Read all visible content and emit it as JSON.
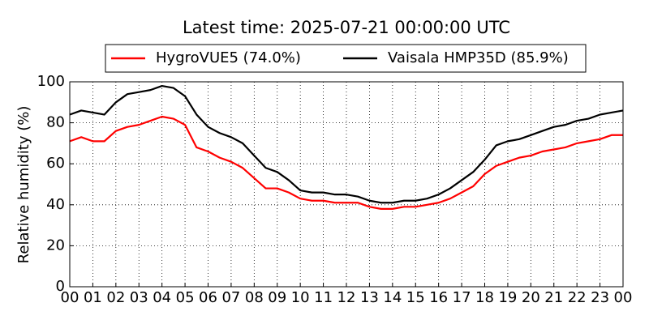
{
  "chart_data": {
    "type": "line",
    "title": "Latest time: 2025-07-21 00:00:00 UTC",
    "y_label": "Relative humidity (%)",
    "x": [
      0,
      0.5,
      1,
      1.5,
      2,
      2.5,
      3,
      3.5,
      4,
      4.5,
      5,
      5.5,
      6,
      6.5,
      7,
      7.5,
      8,
      8.5,
      9,
      9.5,
      10,
      10.5,
      11,
      11.5,
      12,
      12.5,
      13,
      13.5,
      14,
      14.5,
      15,
      15.5,
      16,
      16.5,
      17,
      17.5,
      18,
      18.5,
      19,
      19.5,
      20,
      20.5,
      21,
      21.5,
      22,
      22.5,
      23,
      23.5,
      24
    ],
    "series": [
      {
        "name": "HygroVUE5 (74.0%)",
        "color": "#ff0000",
        "values": [
          71,
          73,
          71,
          71,
          76,
          78,
          79,
          81,
          83,
          82,
          79,
          68,
          66,
          63,
          61,
          58,
          53,
          48,
          48,
          46,
          43,
          42,
          42,
          41,
          41,
          41,
          39,
          38,
          38,
          39,
          39,
          40,
          41,
          43,
          46,
          49,
          55,
          59,
          61,
          63,
          64,
          66,
          67,
          68,
          70,
          71,
          72,
          74,
          74
        ]
      },
      {
        "name": "Vaisala HMP35D (85.9%)",
        "color": "#000000",
        "values": [
          84,
          86,
          85,
          84,
          90,
          94,
          95,
          96,
          98,
          97,
          93,
          84,
          78,
          75,
          73,
          70,
          64,
          58,
          56,
          52,
          47,
          46,
          46,
          45,
          45,
          44,
          42,
          41,
          41,
          42,
          42,
          43,
          45,
          48,
          52,
          56,
          62,
          69,
          71,
          72,
          74,
          76,
          78,
          79,
          81,
          82,
          84,
          85,
          86
        ]
      }
    ],
    "xlim": [
      0,
      24
    ],
    "xticks": [
      {
        "value": 0,
        "label": "00"
      },
      {
        "value": 1,
        "label": "01"
      },
      {
        "value": 2,
        "label": "02"
      },
      {
        "value": 3,
        "label": "03"
      },
      {
        "value": 4,
        "label": "04"
      },
      {
        "value": 5,
        "label": "05"
      },
      {
        "value": 6,
        "label": "06"
      },
      {
        "value": 7,
        "label": "07"
      },
      {
        "value": 8,
        "label": "08"
      },
      {
        "value": 9,
        "label": "09"
      },
      {
        "value": 10,
        "label": "10"
      },
      {
        "value": 11,
        "label": "11"
      },
      {
        "value": 12,
        "label": "12"
      },
      {
        "value": 13,
        "label": "13"
      },
      {
        "value": 14,
        "label": "14"
      },
      {
        "value": 15,
        "label": "15"
      },
      {
        "value": 16,
        "label": "16"
      },
      {
        "value": 17,
        "label": "17"
      },
      {
        "value": 18,
        "label": "18"
      },
      {
        "value": 19,
        "label": "19"
      },
      {
        "value": 20,
        "label": "20"
      },
      {
        "value": 21,
        "label": "21"
      },
      {
        "value": 22,
        "label": "22"
      },
      {
        "value": 23,
        "label": "23"
      },
      {
        "value": 24,
        "label": "00"
      }
    ],
    "ylim": [
      0,
      100
    ],
    "yticks": [
      0,
      20,
      40,
      60,
      80,
      100
    ],
    "grid": true
  }
}
